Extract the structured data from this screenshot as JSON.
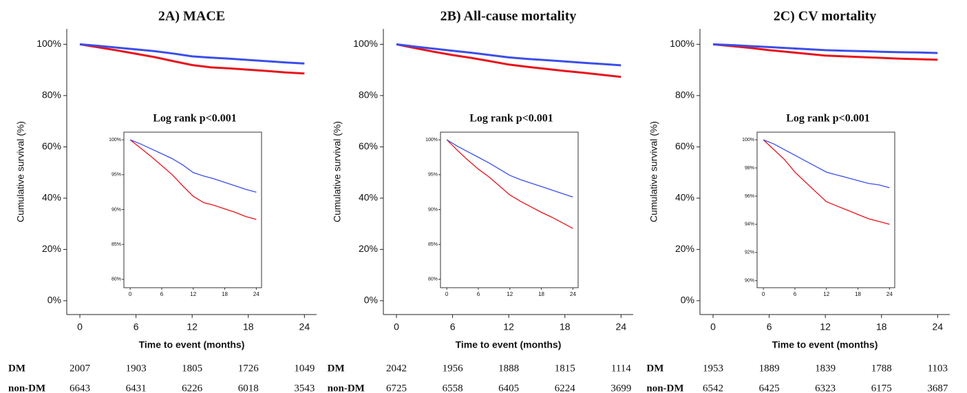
{
  "chart_data": [
    {
      "type": "line",
      "title": "2A) MACE",
      "x_label": "Time to event (months)",
      "y_label": "Cumulative survival (%)",
      "xlim": [
        -1.4,
        25.3
      ],
      "ylim": [
        -5.4,
        106
      ],
      "xticks": [
        0,
        6,
        12,
        18,
        24
      ],
      "yticks": [
        {
          "value": 0,
          "label": "0%"
        },
        {
          "value": 20,
          "label": "20%"
        },
        {
          "value": 40,
          "label": "40%"
        },
        {
          "value": 60,
          "label": "60%"
        },
        {
          "value": 80,
          "label": "80%"
        },
        {
          "value": 100,
          "label": "100%"
        }
      ],
      "x": [
        0,
        2,
        4,
        6,
        8,
        10,
        12,
        14,
        16,
        18,
        20,
        22,
        24
      ],
      "series": [
        {
          "name": "DM",
          "color": "#e8121b",
          "values": [
            100,
            98.8,
            97.6,
            96.3,
            95.0,
            93.4,
            91.9,
            91.0,
            90.6,
            90.1,
            89.6,
            89.0,
            88.6
          ],
          "at_risk": [
            2007,
            1903,
            1805,
            1726,
            1049
          ]
        },
        {
          "name": "non-DM",
          "color": "#3b4ee8",
          "values": [
            100,
            99.4,
            98.7,
            98.0,
            97.3,
            96.4,
            95.3,
            94.8,
            94.4,
            93.9,
            93.4,
            92.9,
            92.5
          ],
          "at_risk": [
            6643,
            6431,
            6226,
            6018,
            3543
          ]
        }
      ],
      "inset": {
        "annotation": "Log rank p<0.001",
        "xlim": [
          -1.2,
          25
        ],
        "ylim": [
          78.8,
          101.1
        ],
        "xticks": [
          0,
          6,
          12,
          18,
          24
        ],
        "yticks": [
          {
            "value": 80,
            "label": "80%"
          },
          {
            "value": 85,
            "label": "85%"
          },
          {
            "value": 90,
            "label": "90%"
          },
          {
            "value": 95,
            "label": "95%"
          },
          {
            "value": 100,
            "label": "100%"
          }
        ]
      }
    },
    {
      "type": "line",
      "title": "2B) All-cause mortality",
      "x_label": "Time to event (months)",
      "y_label": "Cumulative survival (%)",
      "xlim": [
        -1.4,
        25.3
      ],
      "ylim": [
        -5.4,
        106
      ],
      "xticks": [
        0,
        6,
        12,
        18,
        24
      ],
      "yticks": [
        {
          "value": 0,
          "label": "0%"
        },
        {
          "value": 20,
          "label": "20%"
        },
        {
          "value": 40,
          "label": "40%"
        },
        {
          "value": 60,
          "label": "60%"
        },
        {
          "value": 80,
          "label": "80%"
        },
        {
          "value": 100,
          "label": "100%"
        }
      ],
      "x": [
        0,
        2,
        4,
        6,
        8,
        10,
        12,
        14,
        16,
        18,
        20,
        22,
        24
      ],
      "series": [
        {
          "name": "DM",
          "color": "#e8121b",
          "values": [
            100,
            98.5,
            97.1,
            95.8,
            94.7,
            93.4,
            92.1,
            91.2,
            90.4,
            89.6,
            88.9,
            88.1,
            87.3
          ],
          "at_risk": [
            2042,
            1956,
            1888,
            1815,
            1114
          ]
        },
        {
          "name": "non-DM",
          "color": "#3b4ee8",
          "values": [
            100,
            99.1,
            98.3,
            97.5,
            96.7,
            95.8,
            94.9,
            94.3,
            93.8,
            93.3,
            92.8,
            92.3,
            91.8
          ],
          "at_risk": [
            6725,
            6558,
            6405,
            6224,
            3699
          ]
        }
      ],
      "inset": {
        "annotation": "Log rank p<0.001",
        "xlim": [
          -1.2,
          25
        ],
        "ylim": [
          78.8,
          101.1
        ],
        "xticks": [
          0,
          6,
          12,
          18,
          24
        ],
        "yticks": [
          {
            "value": 80,
            "label": "80%"
          },
          {
            "value": 85,
            "label": "85%"
          },
          {
            "value": 90,
            "label": "90%"
          },
          {
            "value": 95,
            "label": "95%"
          },
          {
            "value": 100,
            "label": "100%"
          }
        ]
      }
    },
    {
      "type": "line",
      "title": "2C) CV mortality",
      "x_label": "Time to event (months)",
      "y_label": "Cumulative survival (%)",
      "xlim": [
        -1.4,
        25.3
      ],
      "ylim": [
        -5.4,
        106
      ],
      "xticks": [
        0,
        6,
        12,
        18,
        24
      ],
      "yticks": [
        {
          "value": 0,
          "label": "0%"
        },
        {
          "value": 20,
          "label": "20%"
        },
        {
          "value": 40,
          "label": "40%"
        },
        {
          "value": 60,
          "label": "60%"
        },
        {
          "value": 80,
          "label": "80%"
        },
        {
          "value": 100,
          "label": "100%"
        }
      ],
      "x": [
        0,
        2,
        4,
        6,
        8,
        10,
        12,
        14,
        16,
        18,
        20,
        22,
        24
      ],
      "series": [
        {
          "name": "DM",
          "color": "#e8121b",
          "values": [
            100,
            99.3,
            98.6,
            97.7,
            97.0,
            96.3,
            95.6,
            95.3,
            95.0,
            94.7,
            94.4,
            94.2,
            94.0
          ],
          "at_risk": [
            1953,
            1889,
            1839,
            1788,
            1103
          ]
        },
        {
          "name": "non-DM",
          "color": "#3b4ee8",
          "values": [
            100,
            99.7,
            99.3,
            98.9,
            98.5,
            98.1,
            97.7,
            97.5,
            97.3,
            97.1,
            96.9,
            96.8,
            96.6
          ],
          "at_risk": [
            6542,
            6425,
            6323,
            6175,
            3687
          ]
        }
      ],
      "inset": {
        "annotation": "Log rank p<0.001",
        "xlim": [
          -1.2,
          25
        ],
        "ylim": [
          89.5,
          100.54
        ],
        "xticks": [
          0,
          6,
          12,
          18,
          24
        ],
        "yticks": [
          {
            "value": 90,
            "label": "90%"
          },
          {
            "value": 92,
            "label": "92%"
          },
          {
            "value": 94,
            "label": "94%"
          },
          {
            "value": 96,
            "label": "96%"
          },
          {
            "value": 98,
            "label": "98%"
          },
          {
            "value": 100,
            "label": "100%"
          }
        ]
      }
    }
  ]
}
